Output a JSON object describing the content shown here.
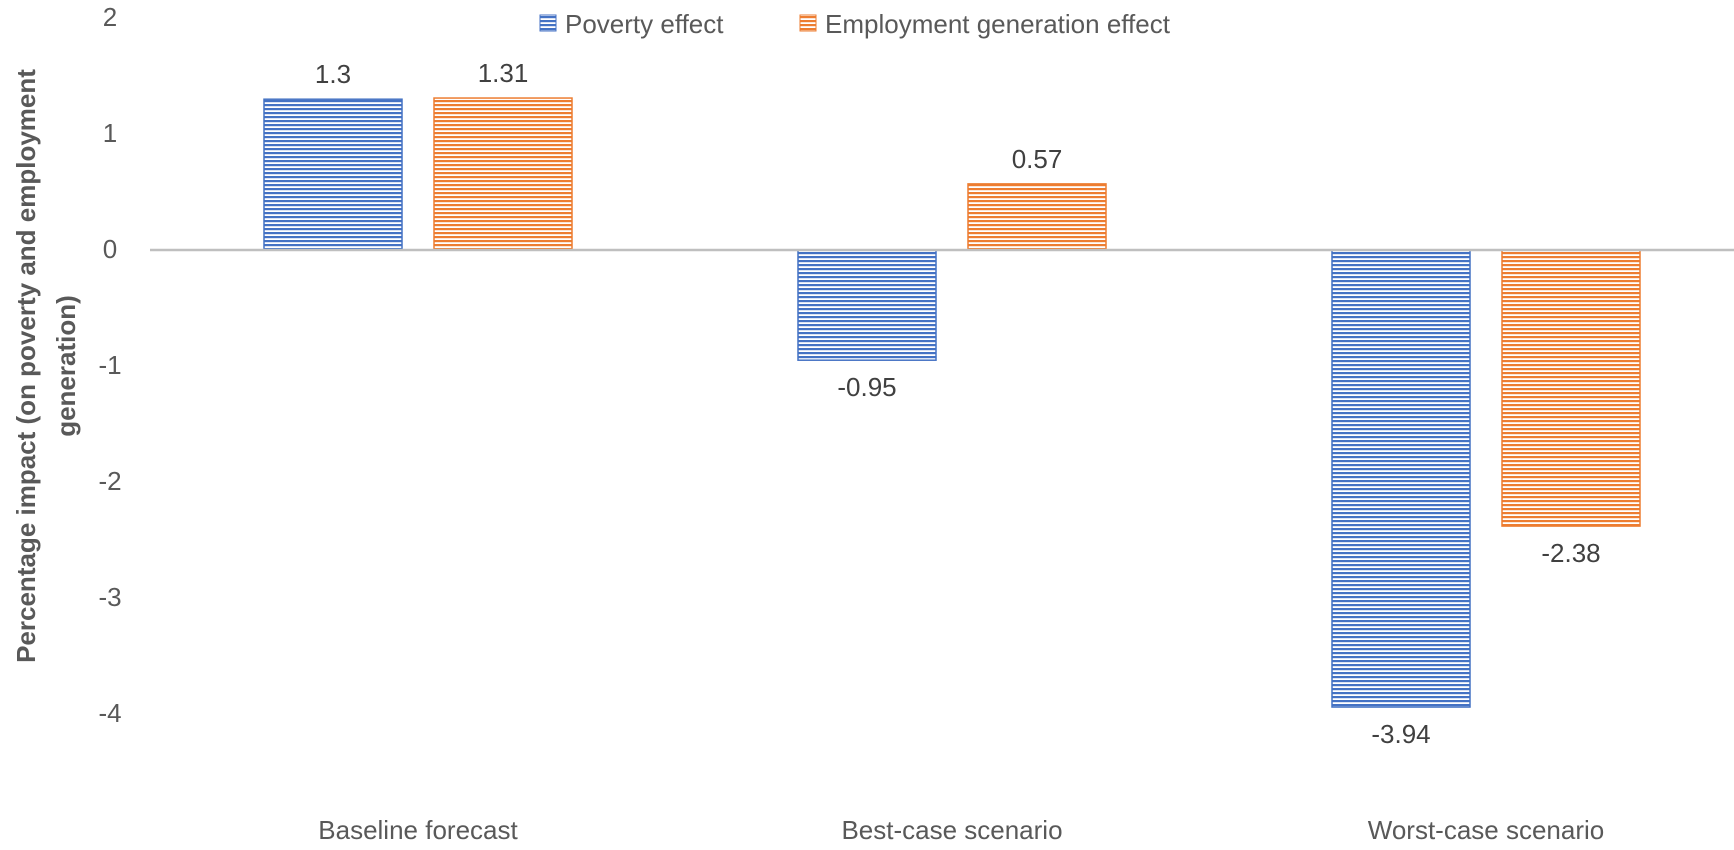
{
  "chart_data": {
    "type": "bar",
    "title": "",
    "xlabel": "",
    "ylabel": "Percentage impact (on poverty and employment generation)",
    "ylabel_lines": [
      "Percentage impact (on poverty and employment",
      "generation)"
    ],
    "categories": [
      "Baseline forecast",
      "Best-case scenario",
      "Worst-case scenario"
    ],
    "series": [
      {
        "name": "Poverty effect",
        "color": "#4472C4",
        "values": [
          1.3,
          -0.95,
          -3.94
        ],
        "labels": [
          "1.3",
          "-0.95",
          "-3.94"
        ]
      },
      {
        "name": "Employment generation effect",
        "color": "#ED7D31",
        "values": [
          1.31,
          0.57,
          -2.38
        ],
        "labels": [
          "1.31",
          "0.57",
          "-2.38"
        ]
      }
    ],
    "ylim": [
      -4,
      2
    ],
    "yticks": [
      2,
      1,
      0,
      -1,
      -2,
      -3,
      -4
    ],
    "ytick_labels": [
      "2",
      "1",
      "0",
      "-1",
      "-2",
      "-3",
      "-4"
    ],
    "grid": false,
    "legend_position": "top-center",
    "fill_pattern": "horizontal-stripes"
  }
}
